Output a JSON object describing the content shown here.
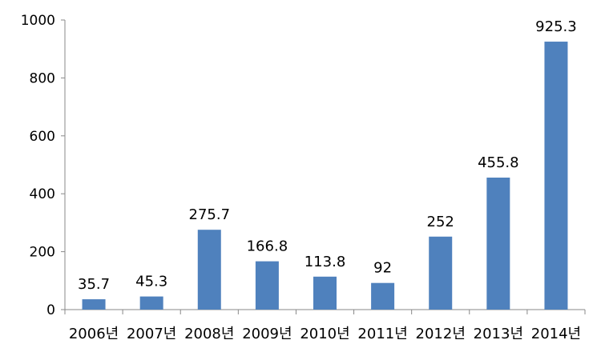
{
  "chart_data": {
    "type": "bar",
    "categories": [
      "2006년",
      "2007년",
      "2008년",
      "2009년",
      "2010년",
      "2011년",
      "2012년",
      "2013년",
      "2014년"
    ],
    "values": [
      35.7,
      45.3,
      275.7,
      166.8,
      113.8,
      92,
      252,
      455.8,
      925.3
    ],
    "data_labels": [
      "35.7",
      "45.3",
      "275.7",
      "166.8",
      "113.8",
      "92",
      "252",
      "455.8",
      "925.3"
    ],
    "title": "",
    "xlabel": "",
    "ylabel": "",
    "ylim": [
      0,
      1000
    ],
    "yticks": [
      0,
      200,
      400,
      600,
      800,
      1000
    ],
    "ytick_labels": [
      "0",
      "200",
      "400",
      "600",
      "800",
      "1000"
    ],
    "grid": false,
    "legend": "none",
    "bar_color": "#4F81BD"
  }
}
